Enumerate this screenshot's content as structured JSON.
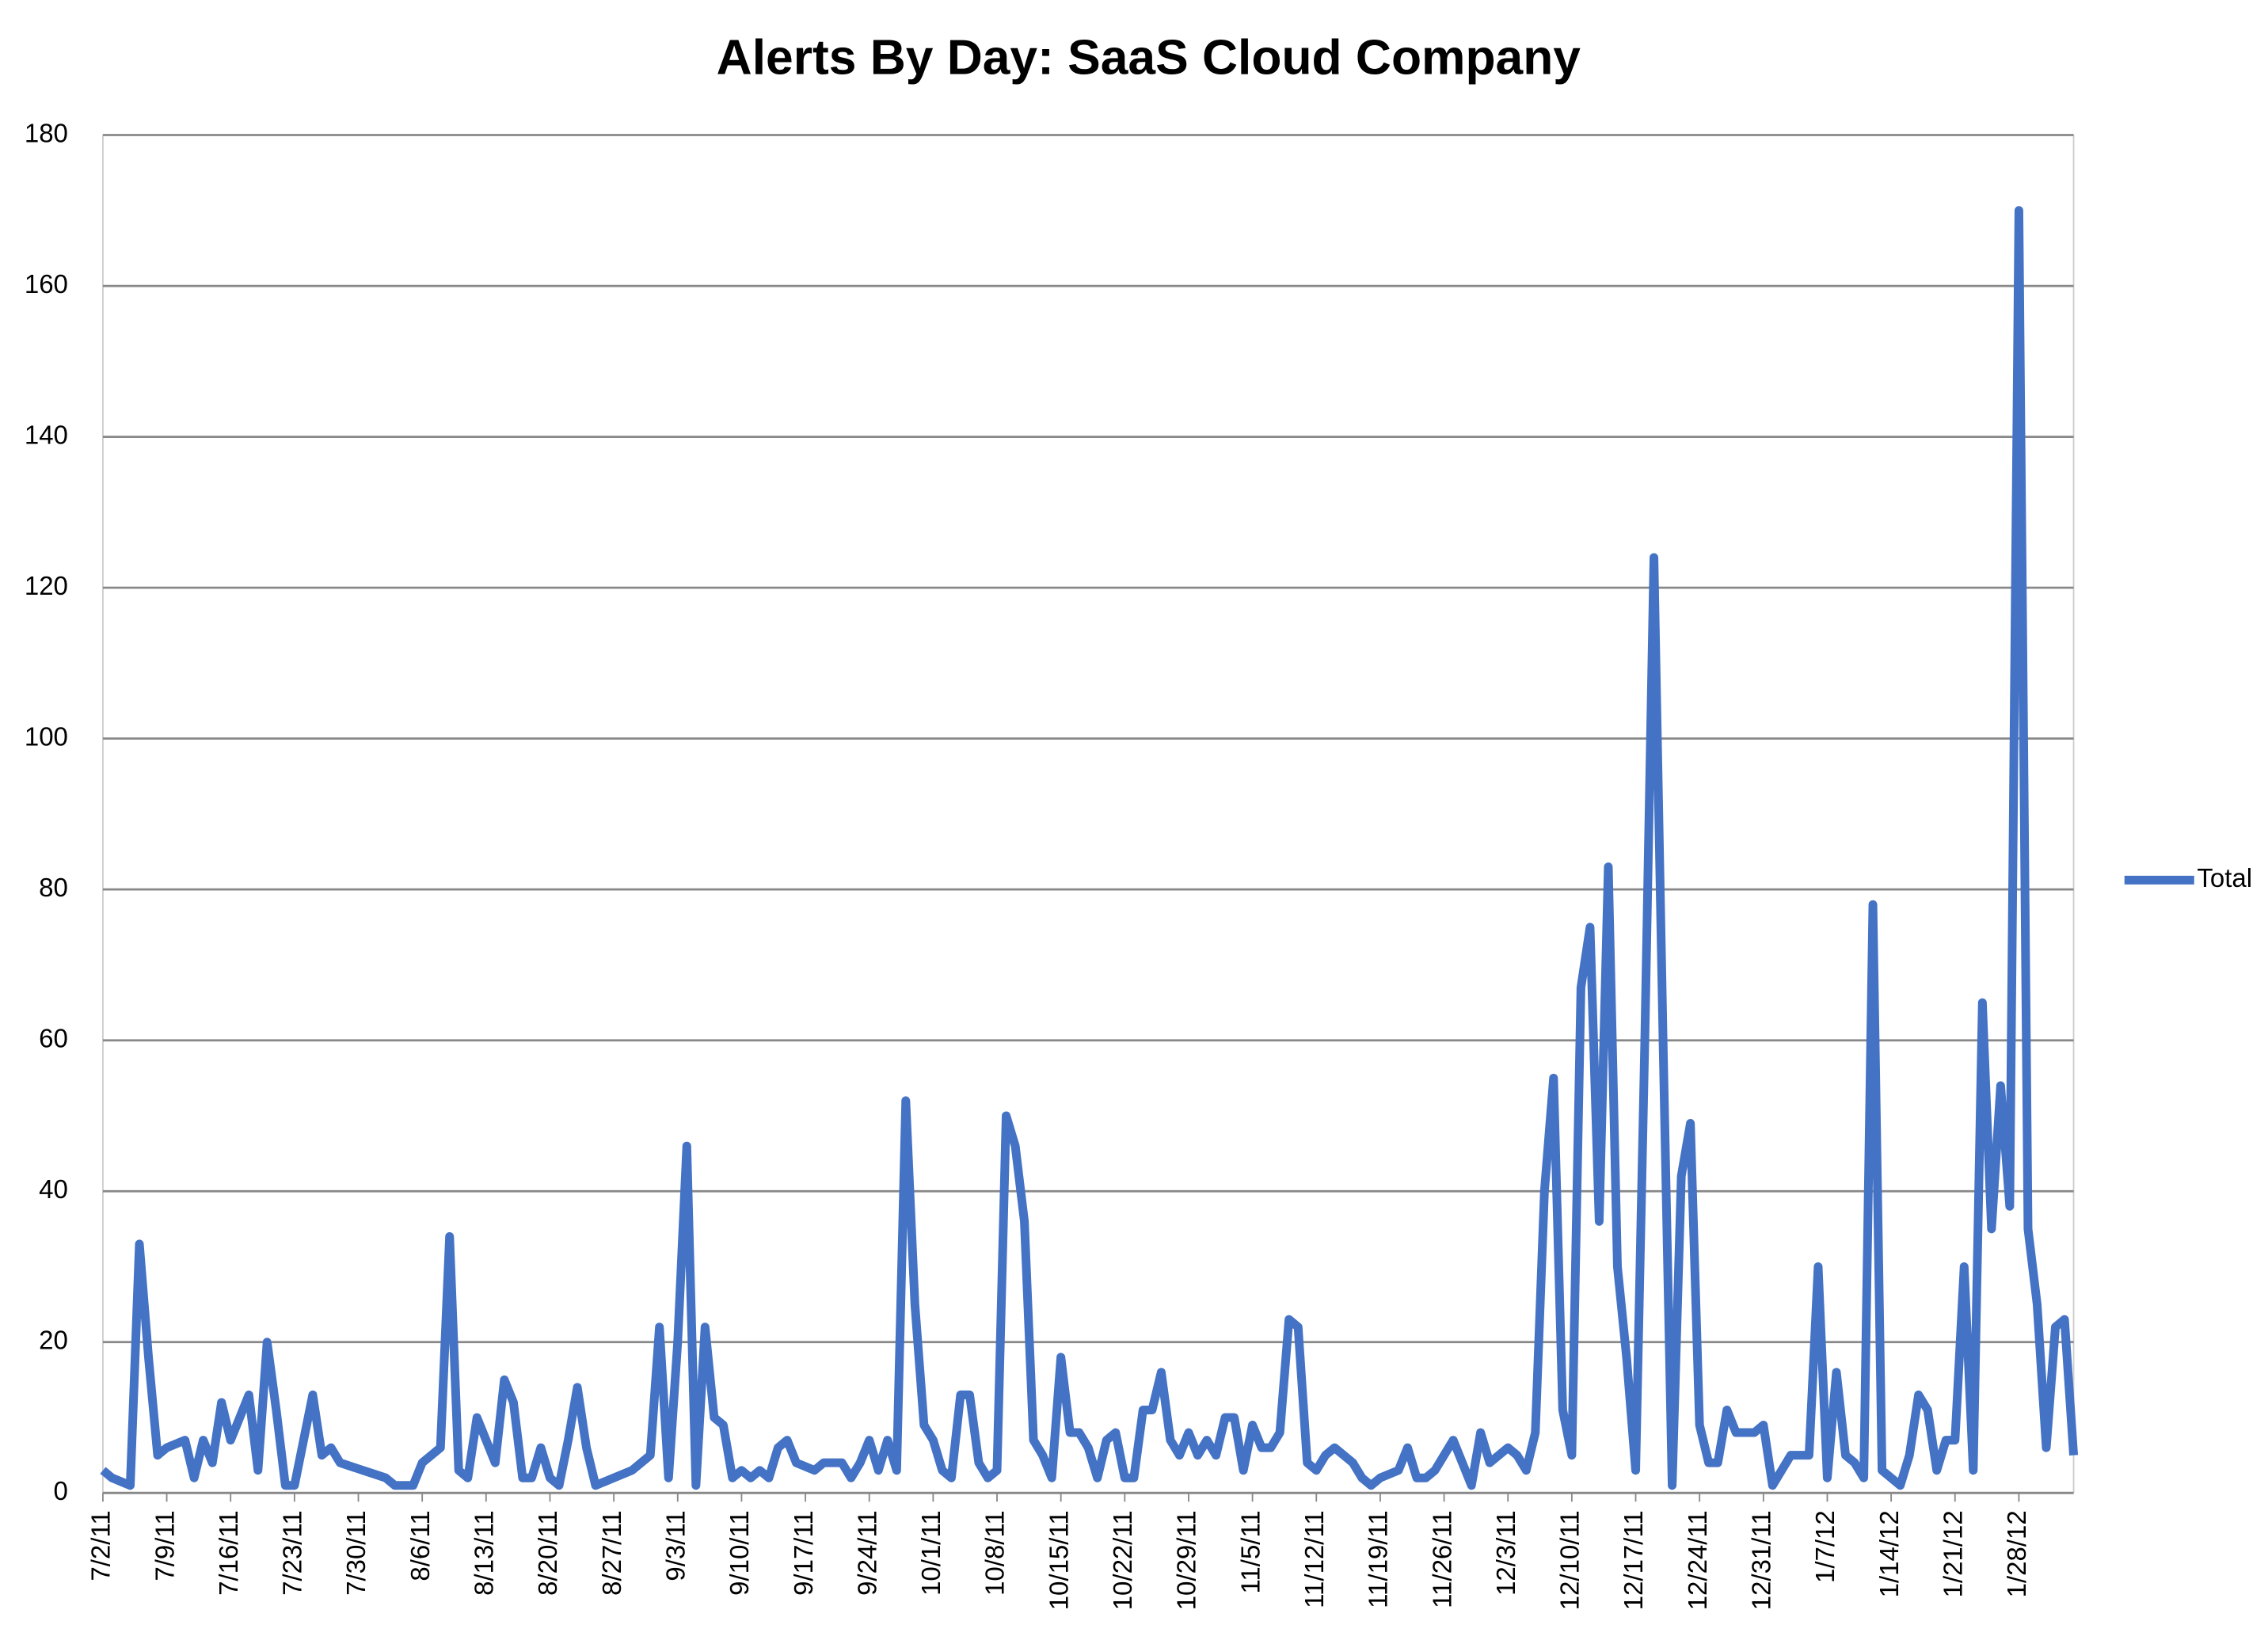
{
  "chart_data": {
    "type": "line",
    "title": "Alerts By Day:  SaaS Cloud Company",
    "categories": [
      "7/2/11",
      null,
      null,
      null,
      null,
      null,
      null,
      "7/9/11",
      null,
      null,
      null,
      null,
      null,
      null,
      "7/16/11",
      null,
      null,
      null,
      null,
      null,
      null,
      "7/23/11",
      null,
      null,
      null,
      null,
      null,
      null,
      "7/30/11",
      null,
      null,
      null,
      null,
      null,
      null,
      "8/6/11",
      null,
      null,
      null,
      null,
      null,
      null,
      "8/13/11",
      null,
      null,
      null,
      null,
      null,
      null,
      "8/20/11",
      null,
      null,
      null,
      null,
      null,
      null,
      "8/27/11",
      null,
      null,
      null,
      null,
      null,
      null,
      "9/3/11",
      null,
      null,
      null,
      null,
      null,
      null,
      "9/10/11",
      null,
      null,
      null,
      null,
      null,
      null,
      "9/17/11",
      null,
      null,
      null,
      null,
      null,
      null,
      "9/24/11",
      null,
      null,
      null,
      null,
      null,
      null,
      "10/1/11",
      null,
      null,
      null,
      null,
      null,
      null,
      "10/8/11",
      null,
      null,
      null,
      null,
      null,
      null,
      "10/15/11",
      null,
      null,
      null,
      null,
      null,
      null,
      "10/22/11",
      null,
      null,
      null,
      null,
      null,
      null,
      "10/29/11",
      null,
      null,
      null,
      null,
      null,
      null,
      "11/5/11",
      null,
      null,
      null,
      null,
      null,
      null,
      "11/12/11",
      null,
      null,
      null,
      null,
      null,
      null,
      "11/19/11",
      null,
      null,
      null,
      null,
      null,
      null,
      "11/26/11",
      null,
      null,
      null,
      null,
      null,
      null,
      "12/3/11",
      null,
      null,
      null,
      null,
      null,
      null,
      "12/10/11",
      null,
      null,
      null,
      null,
      null,
      null,
      "12/17/11",
      null,
      null,
      null,
      null,
      null,
      null,
      "12/24/11",
      null,
      null,
      null,
      null,
      null,
      null,
      "12/31/11",
      null,
      null,
      null,
      null,
      null,
      null,
      "1/7/12",
      null,
      null,
      null,
      null,
      null,
      null,
      "1/14/12",
      null,
      null,
      null,
      null,
      null,
      null,
      "1/21/12",
      null,
      null,
      null,
      null,
      null,
      null,
      "1/28/12",
      null,
      null,
      null,
      null,
      null,
      null
    ],
    "series": [
      {
        "name": "Total",
        "color": "#4472c4",
        "values": [
          3,
          2,
          1.5,
          1,
          33,
          18,
          5,
          6,
          6.5,
          7,
          2,
          7,
          4,
          12,
          7,
          10,
          13,
          3,
          20,
          11,
          1,
          1,
          7,
          13,
          5,
          6,
          4,
          3.6,
          3.2,
          2.8,
          2.4,
          2,
          1,
          1,
          1,
          4,
          5,
          6,
          34,
          3,
          2,
          10,
          7,
          4,
          15,
          12,
          2,
          2,
          6,
          2,
          1,
          7,
          14,
          6,
          1,
          1.5,
          2,
          2.5,
          3,
          4,
          5,
          22,
          2,
          20,
          46,
          1,
          22,
          10,
          9,
          2,
          3,
          2,
          3,
          2,
          6,
          7,
          4,
          3.5,
          3,
          4,
          4,
          4,
          2,
          4,
          7,
          3,
          7,
          3,
          52,
          25,
          9,
          7,
          3,
          2,
          13,
          13,
          4,
          2,
          3,
          50,
          46,
          36,
          7,
          5,
          2,
          18,
          8,
          8,
          6,
          2,
          7,
          8,
          2,
          2,
          11,
          11,
          16,
          7,
          5,
          8,
          5,
          7,
          5,
          10,
          10,
          3,
          9,
          6,
          6,
          8,
          23,
          22,
          4,
          3,
          5,
          6,
          5,
          4,
          2,
          1,
          2,
          2.5,
          3,
          6,
          2,
          2,
          3,
          5,
          7,
          4,
          1,
          8,
          4,
          5,
          6,
          5,
          3,
          8,
          40,
          55,
          11,
          5,
          67,
          75,
          36,
          83,
          30,
          18,
          3,
          60,
          124,
          60,
          1,
          42,
          49,
          9,
          4,
          4,
          11,
          8,
          8,
          8,
          9,
          1,
          3,
          5,
          5,
          5,
          30,
          2,
          16,
          5,
          4,
          2,
          78,
          3,
          2,
          1,
          5,
          13,
          11,
          3,
          7,
          7,
          30,
          3,
          65,
          35,
          54,
          38,
          170,
          35,
          25,
          6,
          22,
          23,
          5
        ]
      }
    ],
    "ylim": [
      0,
      180
    ],
    "yticks": [
      0,
      20,
      40,
      60,
      80,
      100,
      120,
      140,
      160,
      180
    ],
    "grid": true,
    "legend": "right"
  }
}
